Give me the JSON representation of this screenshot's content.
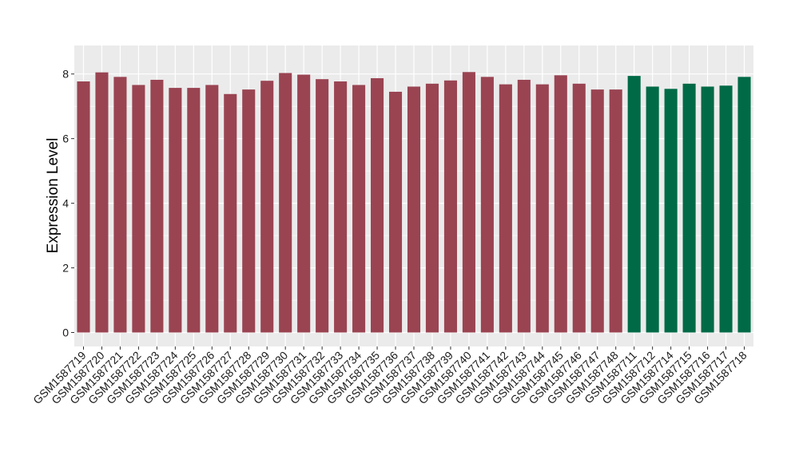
{
  "chart_data": {
    "type": "bar",
    "title": "",
    "xlabel": "",
    "ylabel": "Expression Level",
    "ylim": [
      0,
      8.4
    ],
    "yticks": [
      0,
      2,
      4,
      6,
      8
    ],
    "grid": true,
    "legend": "none",
    "background_color": "#EBEBEB",
    "grid_color": "#FFFFFF",
    "colors": {
      "group_a": "#9A4452",
      "group_b": "#006A46"
    },
    "categories": [
      "GSM1587719",
      "GSM1587720",
      "GSM1587721",
      "GSM1587722",
      "GSM1587723",
      "GSM1587724",
      "GSM1587725",
      "GSM1587726",
      "GSM1587727",
      "GSM1587728",
      "GSM1587729",
      "GSM1587730",
      "GSM1587731",
      "GSM1587732",
      "GSM1587733",
      "GSM1587734",
      "GSM1587735",
      "GSM1587736",
      "GSM1587737",
      "GSM1587738",
      "GSM1587739",
      "GSM1587740",
      "GSM1587741",
      "GSM1587742",
      "GSM1587743",
      "GSM1587744",
      "GSM1587745",
      "GSM1587746",
      "GSM1587747",
      "GSM1587748",
      "GSM1587711",
      "GSM1587712",
      "GSM1587714",
      "GSM1587715",
      "GSM1587716",
      "GSM1587717",
      "GSM1587718"
    ],
    "values": [
      7.77,
      8.05,
      7.91,
      7.66,
      7.82,
      7.57,
      7.57,
      7.66,
      7.38,
      7.52,
      7.79,
      8.03,
      7.98,
      7.84,
      7.77,
      7.66,
      7.87,
      7.45,
      7.61,
      7.7,
      7.8,
      8.06,
      7.91,
      7.68,
      7.82,
      7.68,
      7.96,
      7.7,
      7.52,
      7.52,
      7.94,
      7.61,
      7.54,
      7.7,
      7.61,
      7.64,
      7.91
    ],
    "groups": [
      "group_a",
      "group_a",
      "group_a",
      "group_a",
      "group_a",
      "group_a",
      "group_a",
      "group_a",
      "group_a",
      "group_a",
      "group_a",
      "group_a",
      "group_a",
      "group_a",
      "group_a",
      "group_a",
      "group_a",
      "group_a",
      "group_a",
      "group_a",
      "group_a",
      "group_a",
      "group_a",
      "group_a",
      "group_a",
      "group_a",
      "group_a",
      "group_a",
      "group_a",
      "group_a",
      "group_b",
      "group_b",
      "group_b",
      "group_b",
      "group_b",
      "group_b",
      "group_b"
    ]
  }
}
